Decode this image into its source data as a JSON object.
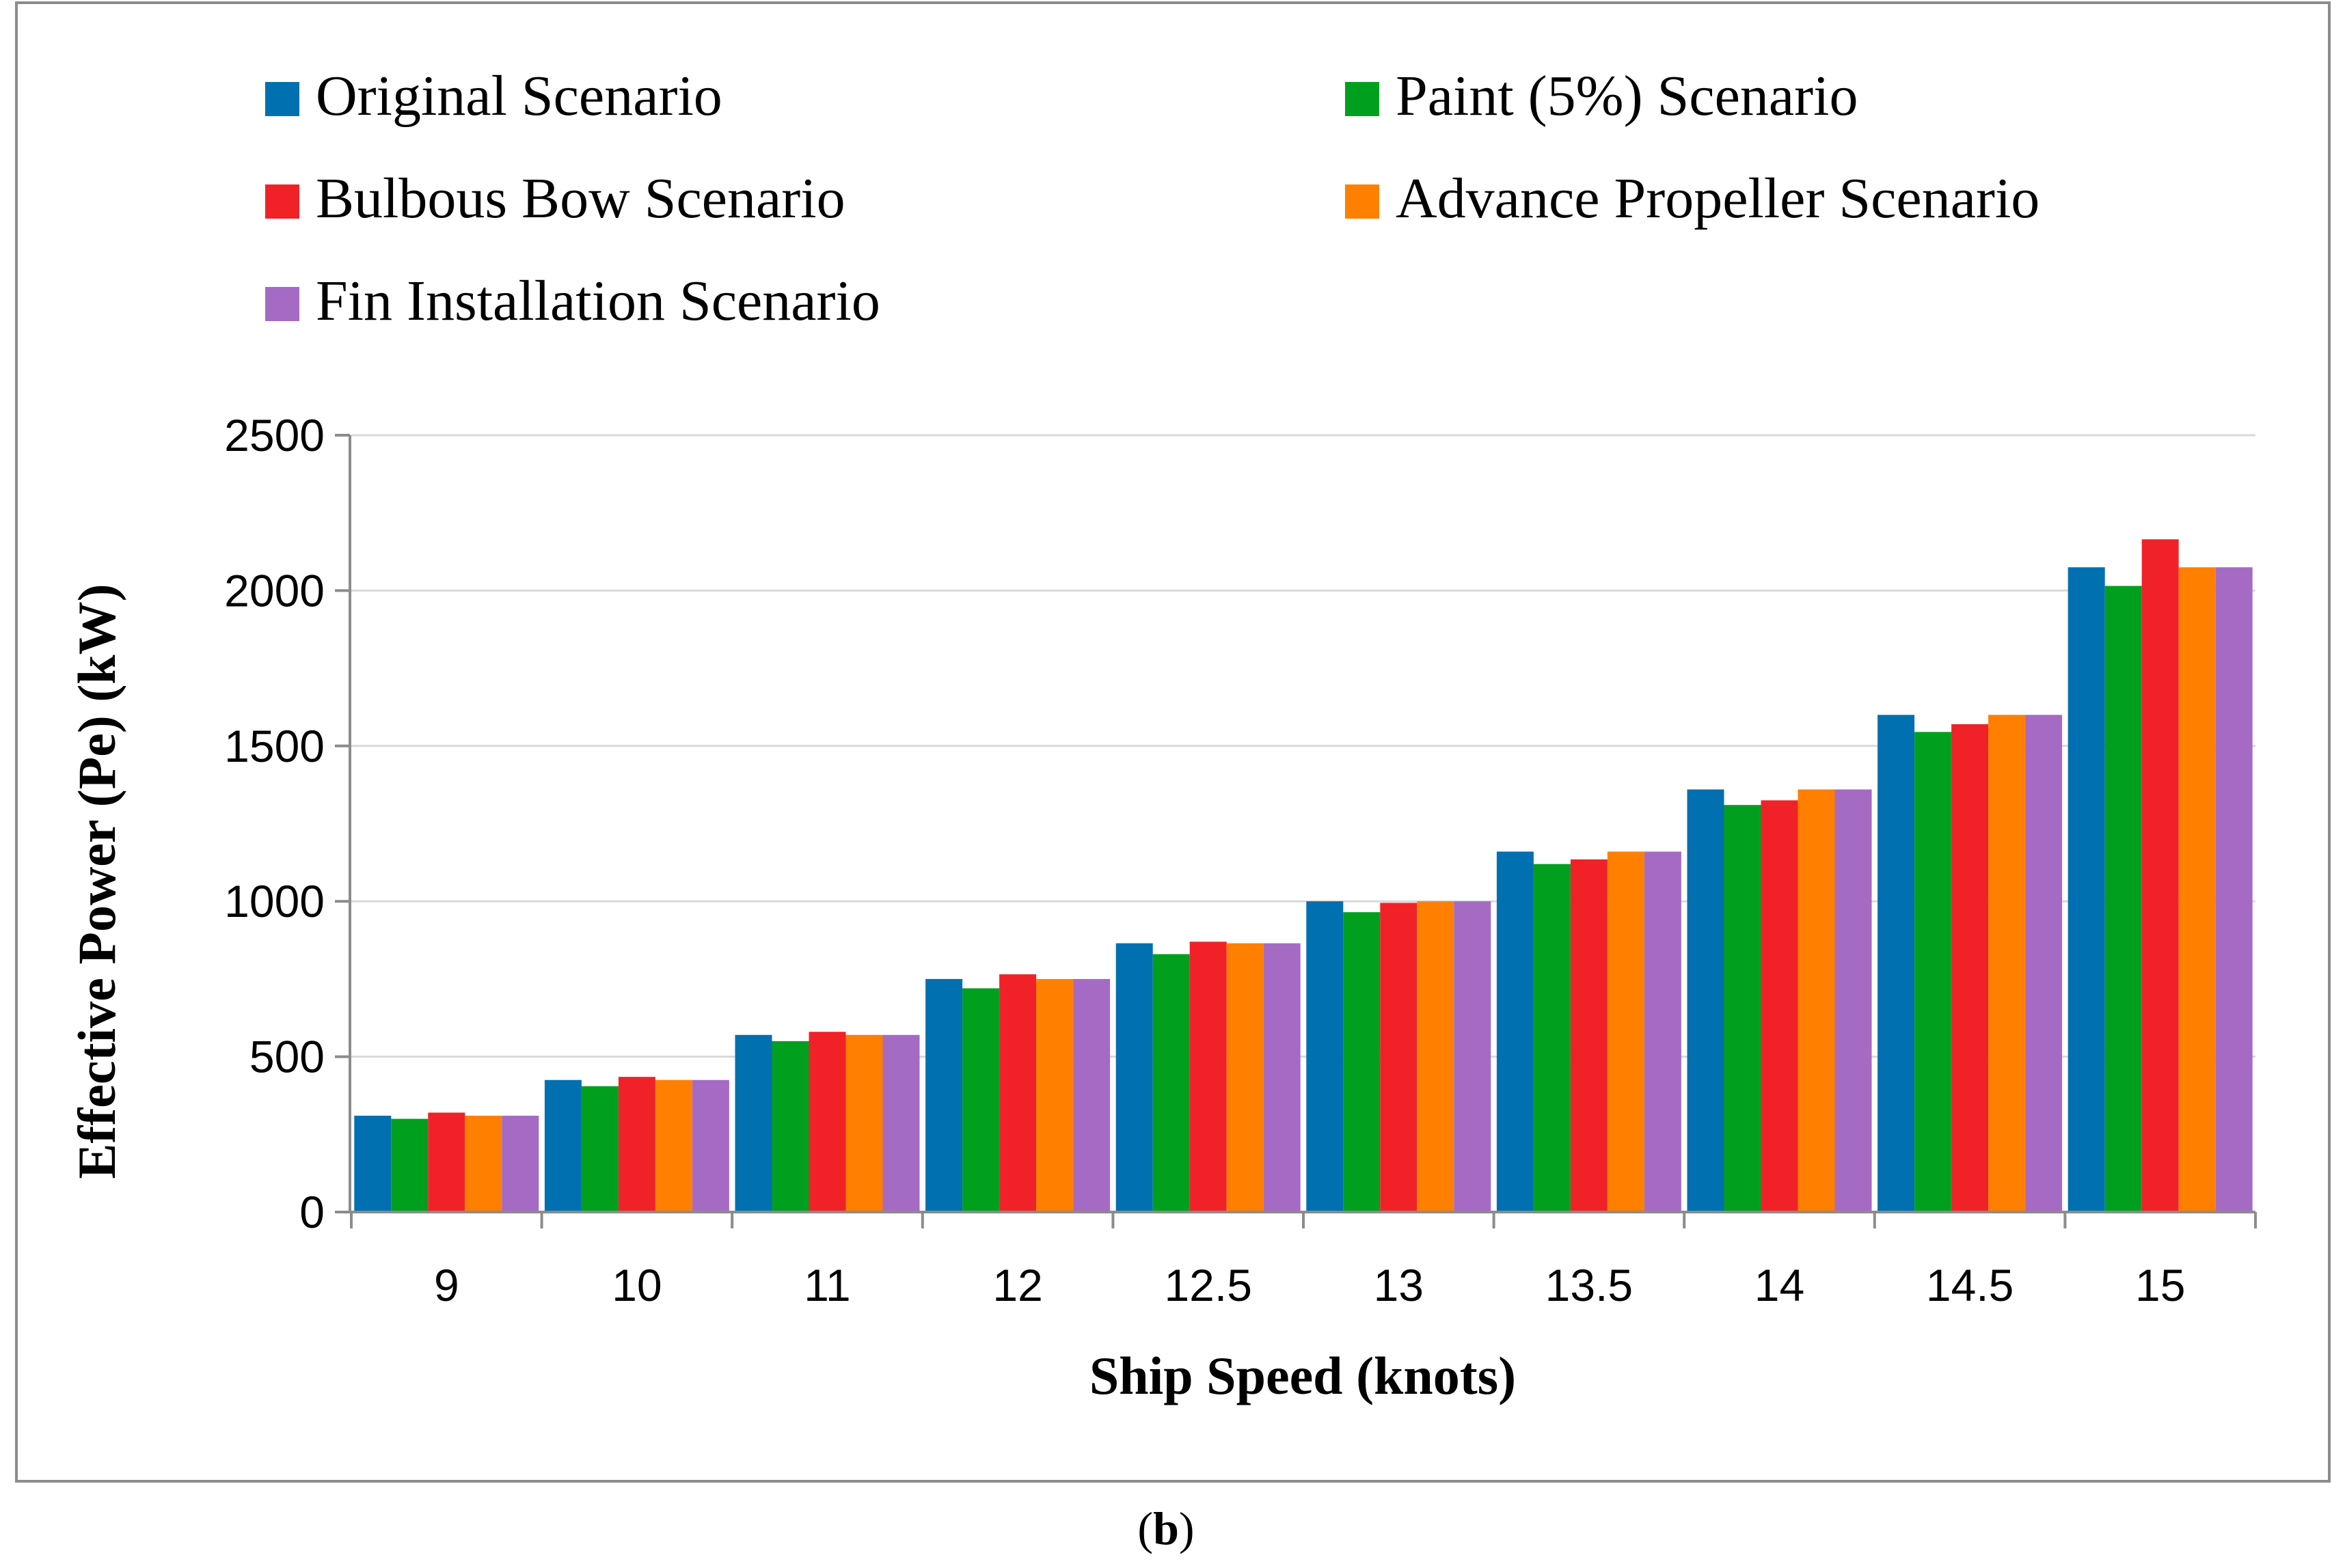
{
  "chart_data": {
    "type": "bar",
    "categories": [
      "9",
      "10",
      "11",
      "12",
      "12.5",
      "13",
      "13.5",
      "14",
      "14.5",
      "15"
    ],
    "series": [
      {
        "name": "Original Scenario",
        "color": "#0070B0",
        "values": [
          310,
          425,
          570,
          750,
          865,
          1000,
          1160,
          1360,
          1600,
          2075
        ]
      },
      {
        "name": "Paint (5%) Scenario",
        "color": "#00A01E",
        "values": [
          300,
          405,
          550,
          720,
          830,
          965,
          1120,
          1310,
          1545,
          2015
        ]
      },
      {
        "name": "Bulbous Bow Scenario",
        "color": "#F02228",
        "values": [
          320,
          435,
          580,
          765,
          870,
          995,
          1135,
          1325,
          1570,
          2165
        ]
      },
      {
        "name": "Advance Propeller Scenario",
        "color": "#FF7F00",
        "values": [
          310,
          425,
          570,
          750,
          865,
          1000,
          1160,
          1360,
          1600,
          2075
        ]
      },
      {
        "name": "Fin Installation Scenario",
        "color": "#A56BC4",
        "values": [
          310,
          425,
          570,
          750,
          865,
          1000,
          1160,
          1360,
          1600,
          2075
        ]
      }
    ],
    "title": "",
    "xlabel": "Ship Speed (knots)",
    "ylabel": "Effective Power (Pe) (kW)",
    "ylim": [
      0,
      2500
    ],
    "yticks": [
      "0",
      "500",
      "1000",
      "1500",
      "2000",
      "2500"
    ],
    "grid": true,
    "legend_position": "top"
  },
  "caption": {
    "open": "(",
    "letter": "b",
    "close": ")"
  }
}
